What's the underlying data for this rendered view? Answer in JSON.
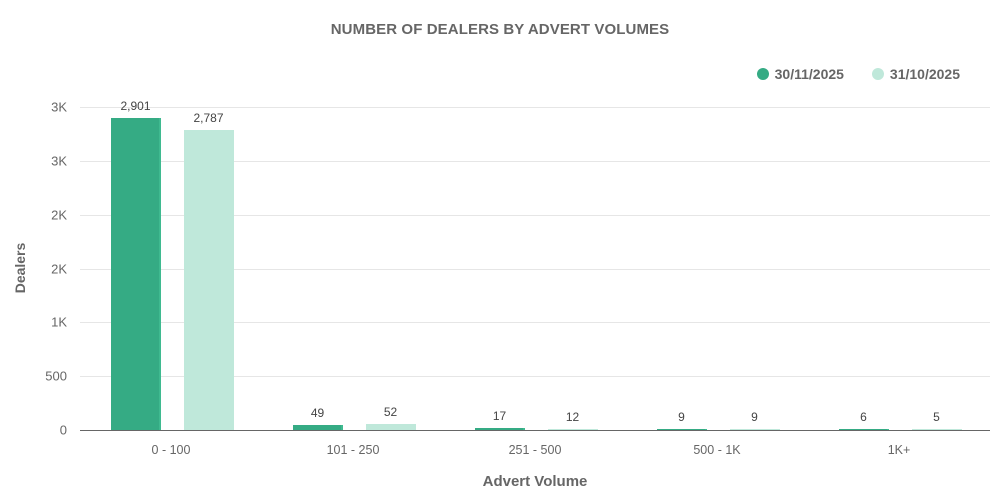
{
  "chart": {
    "title": "NUMBER OF DEALERS BY ADVERT VOLUMES",
    "y_title": "Dealers",
    "x_title": "Advert Volume",
    "legend": [
      {
        "label": "30/11/2025",
        "color": "#35ab84"
      },
      {
        "label": "31/10/2025",
        "color": "#bfe8da"
      }
    ],
    "y_ticks": [
      {
        "value": 0,
        "label": "0"
      },
      {
        "value": 500,
        "label": "500"
      },
      {
        "value": 1000,
        "label": "1K"
      },
      {
        "value": 1500,
        "label": "2K"
      },
      {
        "value": 2000,
        "label": "2K"
      },
      {
        "value": 2500,
        "label": "3K"
      },
      {
        "value": 3000,
        "label": "3K"
      }
    ],
    "categories": [
      "0 - 100",
      "101 - 250",
      "251 - 500",
      "500 - 1K",
      "1K+"
    ],
    "bar_labels": {
      "s0": [
        "2,901",
        "49",
        "17",
        "9",
        "6"
      ],
      "s1": [
        "2,787",
        "52",
        "12",
        "9",
        "5"
      ]
    }
  },
  "chart_data": {
    "type": "bar",
    "title": "NUMBER OF DEALERS BY ADVERT VOLUMES",
    "xlabel": "Advert Volume",
    "ylabel": "Dealers",
    "categories": [
      "0 - 100",
      "101 - 250",
      "251 - 500",
      "500 - 1K",
      "1K+"
    ],
    "series": [
      {
        "name": "30/11/2025",
        "color": "#35ab84",
        "values": [
          2901,
          49,
          17,
          9,
          6
        ]
      },
      {
        "name": "31/10/2025",
        "color": "#bfe8da",
        "values": [
          2787,
          52,
          12,
          9,
          5
        ]
      }
    ],
    "ylim": [
      0,
      3000
    ],
    "y_tick_values": [
      0,
      500,
      1000,
      1500,
      2000,
      2500,
      3000
    ],
    "y_tick_labels": [
      "0",
      "500",
      "1K",
      "2K",
      "2K",
      "3K",
      "3K"
    ],
    "grid": true,
    "legend_position": "top-right",
    "data_labels": true
  }
}
